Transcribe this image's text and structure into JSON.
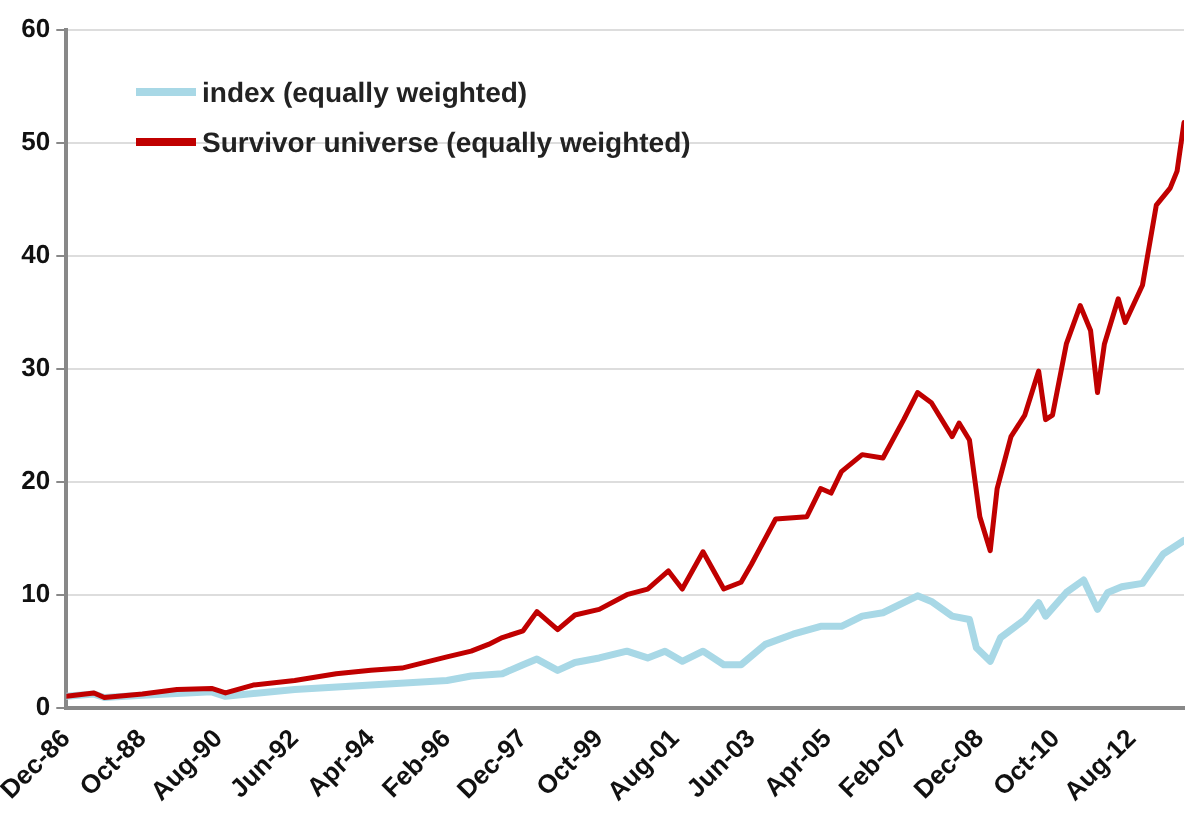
{
  "chart_data": {
    "type": "line",
    "xlim": [
      "1986-12",
      "2013-11"
    ],
    "xticks": [
      {
        "value": "1986-12",
        "label": "Dec-86"
      },
      {
        "value": "1988-10",
        "label": "Oct-88"
      },
      {
        "value": "1990-08",
        "label": "Aug-90"
      },
      {
        "value": "1992-06",
        "label": "Jun-92"
      },
      {
        "value": "1994-04",
        "label": "Apr-94"
      },
      {
        "value": "1996-02",
        "label": "Feb-96"
      },
      {
        "value": "1997-12",
        "label": "Dec-97"
      },
      {
        "value": "1999-10",
        "label": "Oct-99"
      },
      {
        "value": "2001-08",
        "label": "Aug-01"
      },
      {
        "value": "2003-06",
        "label": "Jun-03"
      },
      {
        "value": "2005-04",
        "label": "Apr-05"
      },
      {
        "value": "2007-02",
        "label": "Feb-07"
      },
      {
        "value": "2008-12",
        "label": "Dec-08"
      },
      {
        "value": "2010-10",
        "label": "Oct-10"
      },
      {
        "value": "2012-08",
        "label": "Aug-12"
      }
    ],
    "ylim": [
      0,
      60
    ],
    "yticks": [
      0,
      10,
      20,
      30,
      40,
      50,
      60
    ],
    "grid": "y",
    "legend": "top left",
    "marker": "none",
    "line_style": "solid",
    "series": [
      {
        "name": "index (equally weighted)",
        "color": "#a8d8e6",
        "x": [
          "1986-12",
          "1987-08",
          "1987-11",
          "1988-10",
          "1990-06",
          "1990-10",
          "1992-06",
          "1994-04",
          "1996-02",
          "1996-09",
          "1997-06",
          "1997-12",
          "1998-04",
          "1998-10",
          "1999-03",
          "1999-10",
          "2000-06",
          "2000-12",
          "2001-05",
          "2001-10",
          "2002-04",
          "2002-10",
          "2003-03",
          "2003-10",
          "2004-06",
          "2005-02",
          "2005-08",
          "2006-02",
          "2006-08",
          "2007-06",
          "2007-10",
          "2008-04",
          "2008-09",
          "2008-11",
          "2009-03",
          "2009-06",
          "2010-01",
          "2010-05",
          "2010-07",
          "2011-01",
          "2011-06",
          "2011-10",
          "2012-01",
          "2012-05",
          "2012-11",
          "2013-05",
          "2013-11"
        ],
        "values": [
          1.0,
          1.2,
          0.9,
          1.1,
          1.4,
          1.0,
          1.6,
          2.0,
          2.4,
          2.8,
          3.0,
          3.8,
          4.3,
          3.3,
          4.0,
          4.4,
          5.0,
          4.4,
          5.0,
          4.1,
          5.0,
          3.8,
          3.8,
          5.6,
          6.5,
          7.2,
          7.2,
          8.1,
          8.4,
          9.9,
          9.4,
          8.1,
          7.8,
          5.3,
          4.1,
          6.2,
          7.8,
          9.3,
          8.1,
          10.2,
          11.3,
          8.7,
          10.2,
          10.7,
          11.0,
          13.6,
          14.8
        ]
      },
      {
        "name": "Survivor universe (equally weighted)",
        "color": "#c00000",
        "x": [
          "1986-12",
          "1987-08",
          "1987-11",
          "1988-10",
          "1989-08",
          "1990-06",
          "1990-10",
          "1991-06",
          "1992-06",
          "1993-06",
          "1994-04",
          "1995-01",
          "1996-02",
          "1996-09",
          "1997-02",
          "1997-06",
          "1997-12",
          "1998-04",
          "1998-10",
          "1999-03",
          "1999-10",
          "2000-06",
          "2000-12",
          "2001-06",
          "2001-10",
          "2002-04",
          "2002-10",
          "2003-03",
          "2003-06",
          "2004-01",
          "2004-10",
          "2005-02",
          "2005-05",
          "2005-08",
          "2006-02",
          "2006-08",
          "2007-02",
          "2007-06",
          "2007-10",
          "2008-04",
          "2008-06",
          "2008-09",
          "2008-12",
          "2009-03",
          "2009-05",
          "2009-09",
          "2010-01",
          "2010-05",
          "2010-07",
          "2010-09",
          "2011-01",
          "2011-05",
          "2011-08",
          "2011-10",
          "2011-12",
          "2012-04",
          "2012-06",
          "2012-11",
          "2013-03",
          "2013-07",
          "2013-09",
          "2013-11"
        ],
        "values": [
          1.0,
          1.3,
          0.9,
          1.2,
          1.6,
          1.7,
          1.3,
          2.0,
          2.4,
          3.0,
          3.3,
          3.5,
          4.5,
          5.0,
          5.6,
          6.2,
          6.8,
          8.5,
          6.9,
          8.2,
          8.7,
          10.0,
          10.5,
          12.1,
          10.5,
          13.8,
          10.5,
          11.1,
          12.7,
          16.7,
          16.9,
          19.4,
          19.0,
          20.9,
          22.4,
          22.1,
          25.5,
          27.9,
          27.0,
          24.0,
          25.2,
          23.7,
          16.9,
          13.9,
          19.4,
          24.0,
          25.9,
          29.8,
          25.5,
          25.9,
          32.2,
          35.6,
          33.4,
          27.9,
          32.2,
          36.2,
          34.1,
          37.4,
          44.5,
          46.0,
          47.5,
          51.8
        ]
      }
    ]
  }
}
